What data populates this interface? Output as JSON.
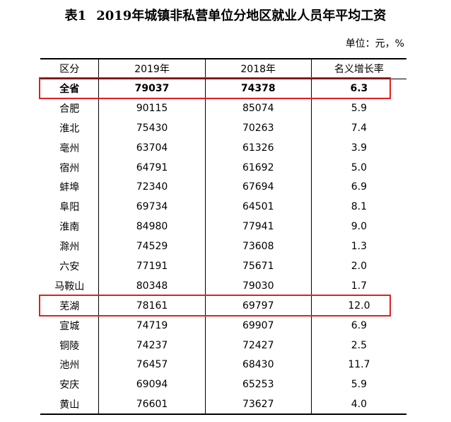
{
  "title": {
    "number": "表1",
    "text": "2019年城镇非私营单位分地区就业人员年平均工资"
  },
  "unit_note": "单位：元，%",
  "table": {
    "headers": [
      "区分",
      "2019年",
      "2018年",
      "名义增长率"
    ],
    "rows": [
      {
        "region": "全省",
        "y2019": "79037",
        "y2018": "74378",
        "rate": "6.3",
        "bold": true,
        "highlight": true
      },
      {
        "region": "合肥",
        "y2019": "90115",
        "y2018": "85074",
        "rate": "5.9"
      },
      {
        "region": "淮北",
        "y2019": "75430",
        "y2018": "70263",
        "rate": "7.4"
      },
      {
        "region": "亳州",
        "y2019": "63704",
        "y2018": "61326",
        "rate": "3.9"
      },
      {
        "region": "宿州",
        "y2019": "64791",
        "y2018": "61692",
        "rate": "5.0"
      },
      {
        "region": "蚌埠",
        "y2019": "72340",
        "y2018": "67694",
        "rate": "6.9"
      },
      {
        "region": "阜阳",
        "y2019": "69734",
        "y2018": "64501",
        "rate": "8.1"
      },
      {
        "region": "淮南",
        "y2019": "84980",
        "y2018": "77941",
        "rate": "9.0"
      },
      {
        "region": "滁州",
        "y2019": "74529",
        "y2018": "73608",
        "rate": "1.3"
      },
      {
        "region": "六安",
        "y2019": "77191",
        "y2018": "75671",
        "rate": "2.0"
      },
      {
        "region": "马鞍山",
        "y2019": "80348",
        "y2018": "79030",
        "rate": "1.7"
      },
      {
        "region": "芜湖",
        "y2019": "78161",
        "y2018": "69797",
        "rate": "12.0",
        "highlight": true
      },
      {
        "region": "宣城",
        "y2019": "74719",
        "y2018": "69907",
        "rate": "6.9"
      },
      {
        "region": "铜陵",
        "y2019": "74237",
        "y2018": "72427",
        "rate": "2.5"
      },
      {
        "region": "池州",
        "y2019": "76457",
        "y2018": "68430",
        "rate": "11.7"
      },
      {
        "region": "安庆",
        "y2019": "69094",
        "y2018": "65253",
        "rate": "5.9"
      },
      {
        "region": "黄山",
        "y2019": "76601",
        "y2018": "73627",
        "rate": "4.0"
      }
    ]
  },
  "colors": {
    "highlight_border": "#e02020",
    "text": "#000000",
    "background": "#ffffff"
  }
}
